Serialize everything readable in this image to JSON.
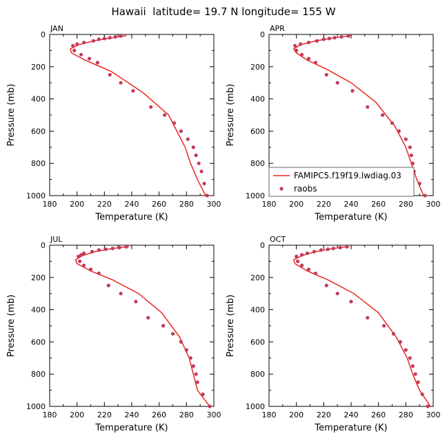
{
  "figure": {
    "title": "Hawaii  latitude= 19.7 N longitude= 155 W"
  },
  "colors": {
    "model_line": "#e8281e",
    "obs_marker": "#c23a5e",
    "axis": "#000000"
  },
  "legend": {
    "placement": "lower-right inside APR panel",
    "model_label": "FAMIPC5.f19f19.lwdiag.03",
    "obs_label": "raobs"
  },
  "chart_data": [
    {
      "type": "line",
      "panel": "JAN",
      "xlabel": "Temperature (K)",
      "ylabel": "Pressure (mb)",
      "xlim": [
        180,
        300
      ],
      "ylim": [
        1000,
        0
      ],
      "y_inverted": true,
      "xticks": [
        180,
        200,
        220,
        240,
        260,
        280,
        300
      ],
      "yticks": [
        0,
        200,
        400,
        600,
        800,
        1000
      ],
      "series": [
        {
          "name": "FAMIPC5.f19f19.lwdiag.03",
          "style": "line",
          "x": [
            236,
            226,
            212,
            201,
            195,
            196,
            206,
            225,
            248,
            267,
            279,
            283,
            288,
            294
          ],
          "y": [
            8,
            20,
            40,
            65,
            90,
            115,
            160,
            230,
            360,
            500,
            700,
            800,
            900,
            1000
          ]
        },
        {
          "name": "raobs",
          "style": "markers",
          "x": [
            232,
            228,
            224,
            220,
            216,
            212,
            205,
            200,
            197,
            198,
            203,
            209,
            215,
            224,
            232,
            241,
            254,
            264,
            271,
            276,
            281,
            285,
            287,
            289,
            291,
            293,
            295
          ],
          "y": [
            10,
            15,
            20,
            25,
            30,
            40,
            50,
            60,
            70,
            100,
            125,
            150,
            175,
            250,
            300,
            350,
            450,
            500,
            550,
            600,
            650,
            700,
            750,
            800,
            850,
            925,
            1000
          ]
        }
      ]
    },
    {
      "type": "line",
      "panel": "APR",
      "xlabel": "Temperature (K)",
      "ylabel": "Pressure (mb)",
      "xlim": [
        180,
        300
      ],
      "ylim": [
        1000,
        0
      ],
      "y_inverted": true,
      "xticks": [
        180,
        200,
        220,
        240,
        260,
        280,
        300
      ],
      "yticks": [
        0,
        200,
        400,
        600,
        800,
        1000
      ],
      "series": [
        {
          "name": "FAMIPC5.f19f19.lwdiag.03",
          "style": "line",
          "x": [
            240,
            228,
            214,
            203,
            198,
            200,
            208,
            222,
            240,
            258,
            272,
            280,
            284,
            288,
            293
          ],
          "y": [
            8,
            20,
            40,
            65,
            90,
            115,
            160,
            215,
            300,
            420,
            570,
            700,
            800,
            900,
            1000
          ]
        },
        {
          "name": "raobs",
          "style": "markers",
          "x": [
            238,
            233,
            228,
            224,
            220,
            215,
            209,
            203,
            199,
            200,
            204,
            209,
            214,
            222,
            230,
            241,
            252,
            263,
            270,
            275,
            280,
            283,
            284,
            285,
            286,
            290,
            294
          ],
          "y": [
            10,
            15,
            20,
            25,
            30,
            40,
            50,
            60,
            70,
            100,
            125,
            150,
            175,
            250,
            300,
            350,
            450,
            500,
            550,
            600,
            650,
            700,
            750,
            800,
            850,
            925,
            1000
          ]
        }
      ]
    },
    {
      "type": "line",
      "panel": "JUL",
      "xlabel": "Temperature (K)",
      "ylabel": "Pressure (mb)",
      "xlim": [
        180,
        300
      ],
      "ylim": [
        1000,
        0
      ],
      "y_inverted": true,
      "xticks": [
        180,
        200,
        220,
        240,
        260,
        280,
        300
      ],
      "yticks": [
        0,
        200,
        400,
        600,
        800,
        1000
      ],
      "series": [
        {
          "name": "FAMIPC5.f19f19.lwdiag.03",
          "style": "line",
          "x": [
            238,
            226,
            213,
            204,
            199,
            200,
            210,
            226,
            245,
            262,
            275,
            282,
            285,
            288,
            297
          ],
          "y": [
            8,
            20,
            40,
            65,
            90,
            115,
            160,
            215,
            300,
            420,
            570,
            700,
            800,
            900,
            1000
          ]
        },
        {
          "name": "raobs",
          "style": "markers",
          "x": [
            236,
            231,
            226,
            221,
            216,
            211,
            205,
            203,
            201,
            202,
            205,
            210,
            216,
            223,
            232,
            243,
            252,
            263,
            270,
            276,
            280,
            283,
            285,
            287,
            288,
            292,
            297
          ],
          "y": [
            10,
            15,
            20,
            25,
            30,
            40,
            50,
            60,
            70,
            100,
            125,
            150,
            175,
            250,
            300,
            350,
            450,
            500,
            550,
            600,
            650,
            700,
            750,
            800,
            850,
            925,
            1000
          ]
        }
      ]
    },
    {
      "type": "line",
      "panel": "OCT",
      "xlabel": "Temperature (K)",
      "ylabel": "Pressure (mb)",
      "xlim": [
        180,
        300
      ],
      "ylim": [
        1000,
        0
      ],
      "y_inverted": true,
      "xticks": [
        180,
        200,
        220,
        240,
        260,
        280,
        300
      ],
      "yticks": [
        0,
        200,
        400,
        600,
        800,
        1000
      ],
      "series": [
        {
          "name": "FAMIPC5.f19f19.lwdiag.03",
          "style": "line",
          "x": [
            238,
            227,
            214,
            204,
            198,
            199,
            208,
            223,
            242,
            260,
            273,
            281,
            285,
            290,
            298
          ],
          "y": [
            8,
            20,
            40,
            65,
            90,
            115,
            160,
            215,
            300,
            420,
            570,
            700,
            800,
            900,
            1000
          ]
        },
        {
          "name": "raobs",
          "style": "markers",
          "x": [
            237,
            232,
            227,
            223,
            218,
            213,
            208,
            204,
            200,
            201,
            204,
            209,
            214,
            222,
            230,
            240,
            252,
            264,
            271,
            276,
            280,
            283,
            285,
            287,
            289,
            292,
            296
          ],
          "y": [
            10,
            15,
            20,
            25,
            30,
            40,
            50,
            60,
            70,
            100,
            125,
            150,
            175,
            250,
            300,
            350,
            450,
            500,
            550,
            600,
            650,
            700,
            750,
            800,
            850,
            925,
            1000
          ]
        }
      ]
    }
  ]
}
